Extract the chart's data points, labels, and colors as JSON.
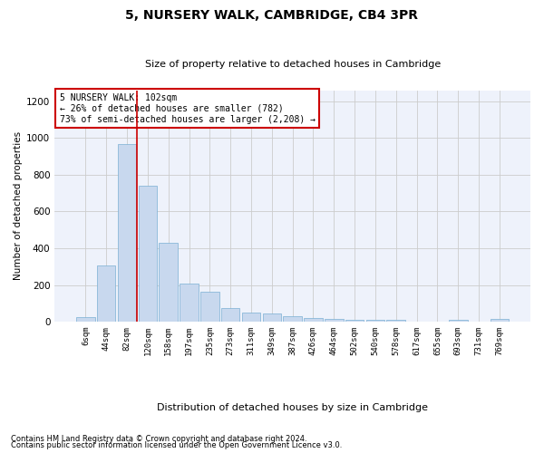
{
  "title": "5, NURSERY WALK, CAMBRIDGE, CB4 3PR",
  "subtitle": "Size of property relative to detached houses in Cambridge",
  "xlabel": "Distribution of detached houses by size in Cambridge",
  "ylabel": "Number of detached properties",
  "bar_color": "#c8d8ee",
  "bar_edge_color": "#7aafd4",
  "vline_color": "#cc0000",
  "vline_x_idx": 2.5,
  "annotation_text": "5 NURSERY WALK: 102sqm\n← 26% of detached houses are smaller (782)\n73% of semi-detached houses are larger (2,208) →",
  "annotation_box_color": "#ffffff",
  "annotation_box_edge_color": "#cc0000",
  "categories": [
    "6sqm",
    "44sqm",
    "82sqm",
    "120sqm",
    "158sqm",
    "197sqm",
    "235sqm",
    "273sqm",
    "311sqm",
    "349sqm",
    "387sqm",
    "426sqm",
    "464sqm",
    "502sqm",
    "540sqm",
    "578sqm",
    "617sqm",
    "655sqm",
    "693sqm",
    "731sqm",
    "769sqm"
  ],
  "values": [
    25,
    305,
    965,
    740,
    430,
    210,
    165,
    75,
    48,
    45,
    30,
    18,
    15,
    10,
    10,
    10,
    0,
    0,
    12,
    0,
    15
  ],
  "ylim": [
    0,
    1260
  ],
  "yticks": [
    0,
    200,
    400,
    600,
    800,
    1000,
    1200
  ],
  "footnote1": "Contains HM Land Registry data © Crown copyright and database right 2024.",
  "footnote2": "Contains public sector information licensed under the Open Government Licence v3.0.",
  "background_color": "#eef2fb",
  "plot_background": "#ffffff"
}
